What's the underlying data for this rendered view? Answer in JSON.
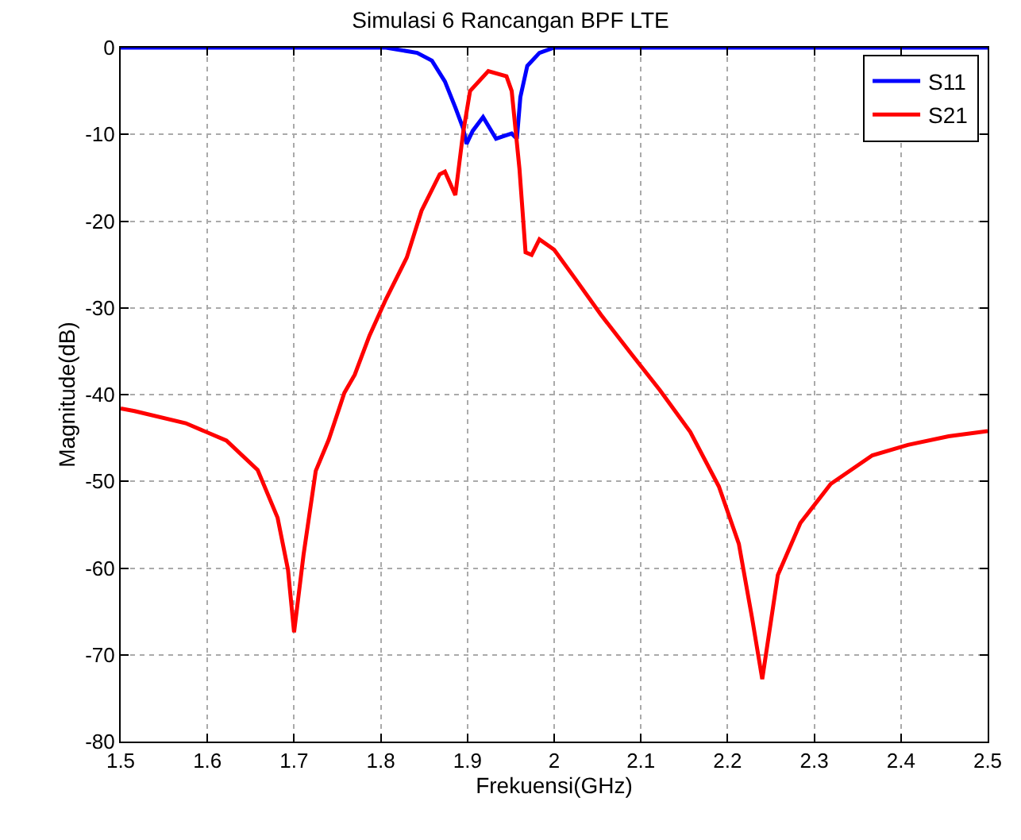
{
  "chart_data": {
    "type": "line",
    "title": "Simulasi 6 Rancangan BPF LTE",
    "xlabel": "Frekuensi(GHz)",
    "ylabel": "Magnitude(dB)",
    "series": [
      {
        "name": "S11",
        "color": "#0000ff",
        "x": [
          1.5,
          1.806,
          1.842,
          1.859,
          1.874,
          1.886,
          1.895,
          1.899,
          1.906,
          1.918,
          1.933,
          1.942,
          1.951,
          1.957,
          1.961,
          1.969,
          1.983,
          2.0,
          2.5
        ],
        "values": [
          0,
          0,
          -0.6,
          -1.5,
          -3.9,
          -6.9,
          -9.3,
          -11.1,
          -9.6,
          -8.0,
          -10.5,
          -10.2,
          -9.9,
          -10.5,
          -5.7,
          -2.1,
          -0.6,
          0,
          0
        ]
      },
      {
        "name": "S21",
        "color": "#ff0000",
        "x": [
          1.5,
          1.516,
          1.575,
          1.622,
          1.658,
          1.681,
          1.693,
          1.7,
          1.711,
          1.725,
          1.74,
          1.758,
          1.77,
          1.787,
          1.806,
          1.83,
          1.847,
          1.868,
          1.874,
          1.886,
          1.895,
          1.903,
          1.924,
          1.945,
          1.951,
          1.96,
          1.967,
          1.974,
          1.983,
          2.0,
          2.024,
          2.054,
          2.089,
          2.122,
          2.157,
          2.19,
          2.213,
          2.228,
          2.24,
          2.258,
          2.284,
          2.319,
          2.367,
          2.408,
          2.455,
          2.5
        ],
        "values": [
          -41.6,
          -41.9,
          -43.3,
          -45.3,
          -48.7,
          -54.2,
          -60.2,
          -67.4,
          -58.4,
          -48.8,
          -45.2,
          -39.8,
          -37.7,
          -33.2,
          -29.0,
          -24.2,
          -18.8,
          -14.6,
          -14.3,
          -17.0,
          -9.8,
          -5.0,
          -2.7,
          -3.3,
          -5.0,
          -14.0,
          -23.6,
          -23.9,
          -22.1,
          -23.3,
          -26.6,
          -30.8,
          -35.3,
          -39.5,
          -44.3,
          -50.6,
          -57.2,
          -65.6,
          -72.8,
          -60.8,
          -54.8,
          -50.3,
          -47.0,
          -45.8,
          -44.8,
          -44.2
        ]
      }
    ],
    "xlim": [
      1.5,
      2.5
    ],
    "xticks": [
      1.5,
      1.6,
      1.7,
      1.8,
      1.9,
      2,
      2.1,
      2.2,
      2.3,
      2.4,
      2.5
    ],
    "ylim": [
      -80,
      0
    ],
    "yticks": [
      -80,
      -70,
      -60,
      -50,
      -40,
      -30,
      -20,
      -10,
      0
    ],
    "grid": true,
    "legend": "top right",
    "marker": "none",
    "line_style": "solid"
  }
}
